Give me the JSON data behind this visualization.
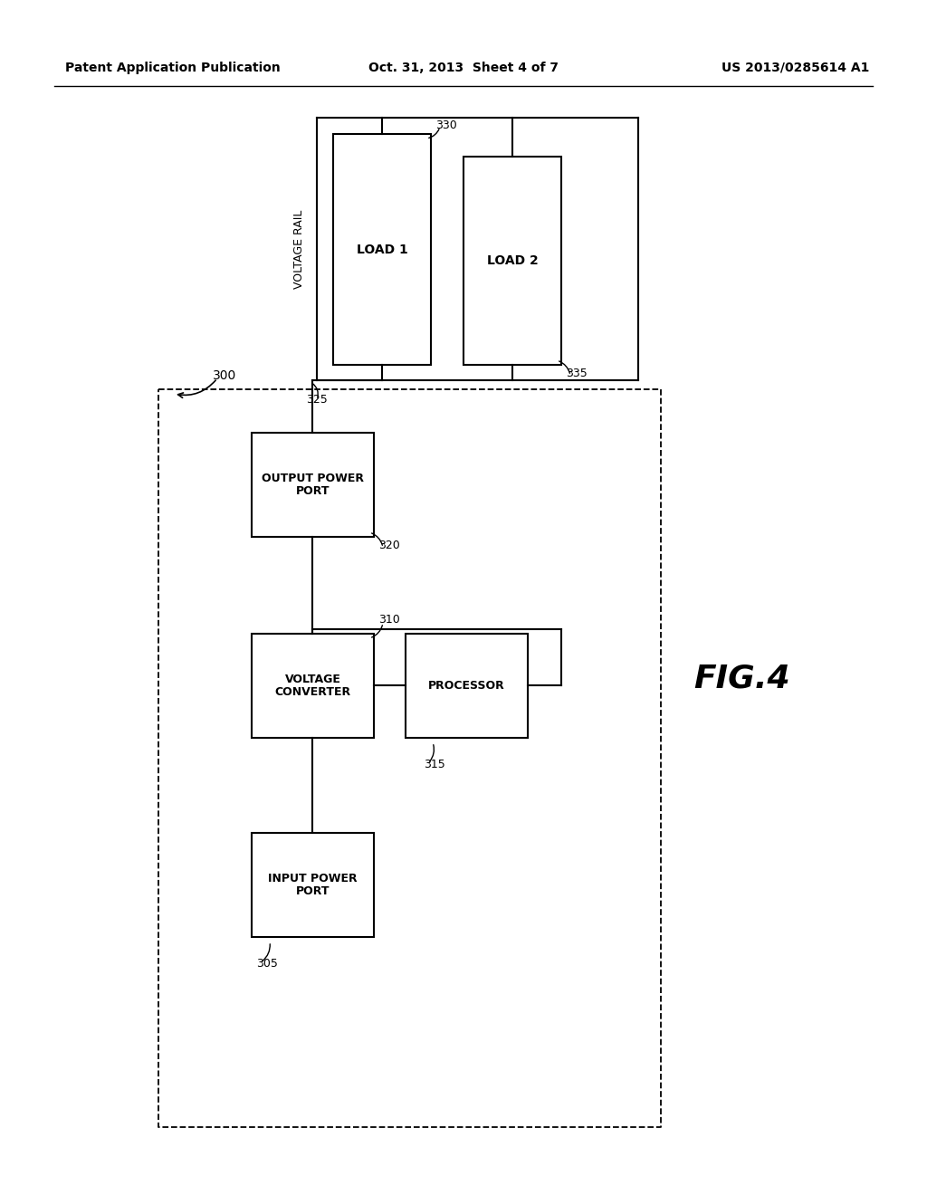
{
  "bg_color": "#ffffff",
  "header_left": "Patent Application Publication",
  "header_center": "Oct. 31, 2013  Sheet 4 of 7",
  "header_right": "US 2013/0285614 A1",
  "fig_label": "FIG.4",
  "line_color": "#000000",
  "text_color": "#000000"
}
